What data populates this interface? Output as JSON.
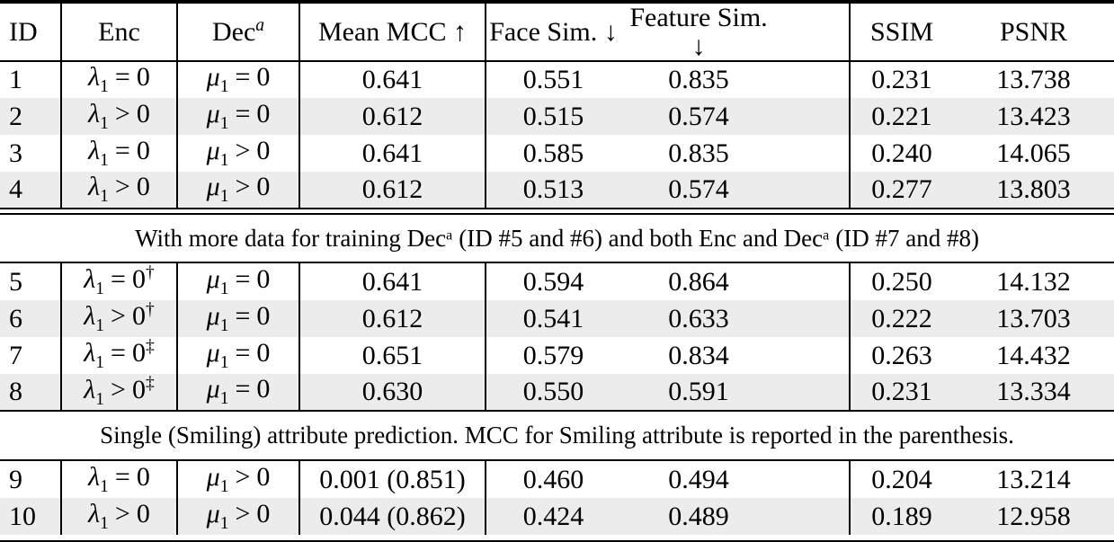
{
  "colors": {
    "row_shade": "#ececec",
    "rule": "#000000",
    "text": "#000000"
  },
  "table": {
    "columns": [
      {
        "key": "id",
        "label": "ID"
      },
      {
        "key": "enc",
        "label": "Enc"
      },
      {
        "key": "dec",
        "label": "Dec",
        "sup": "a"
      },
      {
        "key": "mcc",
        "label": "Mean MCC ↑"
      },
      {
        "key": "face",
        "label": "Face Sim. ↓"
      },
      {
        "key": "feature",
        "label": "Feature Sim. ↓"
      },
      {
        "key": "ssim",
        "label": "SSIM"
      },
      {
        "key": "psnr",
        "label": "PSNR"
      }
    ],
    "sections": [
      {
        "note": null,
        "rows": [
          {
            "id": "1",
            "enc": {
              "sym": "λ",
              "sub": "1",
              "rel": "=",
              "val": "0",
              "sup": ""
            },
            "dec": {
              "sym": "μ",
              "sub": "1",
              "rel": "=",
              "val": "0",
              "sup": ""
            },
            "mcc": "0.641",
            "face": "0.551",
            "feature": "0.835",
            "ssim": "0.231",
            "psnr": "13.738"
          },
          {
            "id": "2",
            "enc": {
              "sym": "λ",
              "sub": "1",
              "rel": ">",
              "val": "0",
              "sup": ""
            },
            "dec": {
              "sym": "μ",
              "sub": "1",
              "rel": "=",
              "val": "0",
              "sup": ""
            },
            "mcc": "0.612",
            "face": "0.515",
            "feature": "0.574",
            "ssim": "0.221",
            "psnr": "13.423"
          },
          {
            "id": "3",
            "enc": {
              "sym": "λ",
              "sub": "1",
              "rel": "=",
              "val": "0",
              "sup": ""
            },
            "dec": {
              "sym": "μ",
              "sub": "1",
              "rel": ">",
              "val": "0",
              "sup": ""
            },
            "mcc": "0.641",
            "face": "0.585",
            "feature": "0.835",
            "ssim": "0.240",
            "psnr": "14.065"
          },
          {
            "id": "4",
            "enc": {
              "sym": "λ",
              "sub": "1",
              "rel": ">",
              "val": "0",
              "sup": ""
            },
            "dec": {
              "sym": "μ",
              "sub": "1",
              "rel": ">",
              "val": "0",
              "sup": ""
            },
            "mcc": "0.612",
            "face": "0.513",
            "feature": "0.574",
            "ssim": "0.277",
            "psnr": "13.803"
          }
        ]
      },
      {
        "note": "With more data for training Decᵃ (ID #5 and #6) and both Enc and Decᵃ (ID #7 and #8)",
        "top_rule": "double",
        "rows": [
          {
            "id": "5",
            "enc": {
              "sym": "λ",
              "sub": "1",
              "rel": "=",
              "val": "0",
              "sup": "†"
            },
            "dec": {
              "sym": "μ",
              "sub": "1",
              "rel": "=",
              "val": "0",
              "sup": ""
            },
            "mcc": "0.641",
            "face": "0.594",
            "feature": "0.864",
            "ssim": "0.250",
            "psnr": "14.132"
          },
          {
            "id": "6",
            "enc": {
              "sym": "λ",
              "sub": "1",
              "rel": ">",
              "val": "0",
              "sup": "†"
            },
            "dec": {
              "sym": "μ",
              "sub": "1",
              "rel": "=",
              "val": "0",
              "sup": ""
            },
            "mcc": "0.612",
            "face": "0.541",
            "feature": "0.633",
            "ssim": "0.222",
            "psnr": "13.703"
          },
          {
            "id": "7",
            "enc": {
              "sym": "λ",
              "sub": "1",
              "rel": "=",
              "val": "0",
              "sup": "‡"
            },
            "dec": {
              "sym": "μ",
              "sub": "1",
              "rel": "=",
              "val": "0",
              "sup": ""
            },
            "mcc": "0.651",
            "face": "0.579",
            "feature": "0.834",
            "ssim": "0.263",
            "psnr": "14.432"
          },
          {
            "id": "8",
            "enc": {
              "sym": "λ",
              "sub": "1",
              "rel": ">",
              "val": "0",
              "sup": "‡"
            },
            "dec": {
              "sym": "μ",
              "sub": "1",
              "rel": "=",
              "val": "0",
              "sup": ""
            },
            "mcc": "0.630",
            "face": "0.550",
            "feature": "0.591",
            "ssim": "0.231",
            "psnr": "13.334"
          }
        ]
      },
      {
        "note": "Single (Smiling) attribute prediction. MCC for Smiling attribute is reported in the parenthesis.",
        "top_rule": "single",
        "rows": [
          {
            "id": "9",
            "enc": {
              "sym": "λ",
              "sub": "1",
              "rel": "=",
              "val": "0",
              "sup": ""
            },
            "dec": {
              "sym": "μ",
              "sub": "1",
              "rel": ">",
              "val": "0",
              "sup": ""
            },
            "mcc": "0.001 (0.851)",
            "face": "0.460",
            "feature": "0.494",
            "ssim": "0.204",
            "psnr": "13.214"
          },
          {
            "id": "10",
            "enc": {
              "sym": "λ",
              "sub": "1",
              "rel": ">",
              "val": "0",
              "sup": ""
            },
            "dec": {
              "sym": "μ",
              "sub": "1",
              "rel": ">",
              "val": "0",
              "sup": ""
            },
            "mcc": "0.044 (0.862)",
            "face": "0.424",
            "feature": "0.489",
            "ssim": "0.189",
            "psnr": "12.958"
          }
        ]
      }
    ]
  }
}
